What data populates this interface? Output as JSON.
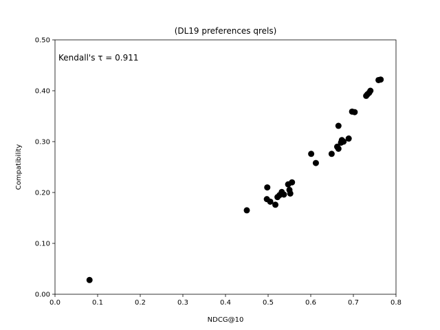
{
  "chart_data": {
    "type": "scatter",
    "title": "(DL19 preferences qrels)",
    "xlabel": "NDCG@10",
    "ylabel": "Compatibility",
    "xlim": [
      0.0,
      0.8
    ],
    "ylim": [
      0.0,
      0.5
    ],
    "x_ticks": [
      0.0,
      0.1,
      0.2,
      0.3,
      0.4,
      0.5,
      0.6,
      0.7,
      0.8
    ],
    "x_tick_labels": [
      "0.0",
      "0.1",
      "0.2",
      "0.3",
      "0.4",
      "0.5",
      "0.6",
      "0.7",
      "0.8"
    ],
    "y_ticks": [
      0.0,
      0.1,
      0.2,
      0.3,
      0.4,
      0.5
    ],
    "y_tick_labels": [
      "0.00",
      "0.10",
      "0.20",
      "0.30",
      "0.40",
      "0.50"
    ],
    "grid": false,
    "marker_color": "#000000",
    "annotation": "Kendall's τ = 0.911",
    "points": [
      {
        "x": 0.081,
        "y": 0.028
      },
      {
        "x": 0.45,
        "y": 0.165
      },
      {
        "x": 0.498,
        "y": 0.21
      },
      {
        "x": 0.497,
        "y": 0.187
      },
      {
        "x": 0.505,
        "y": 0.182
      },
      {
        "x": 0.517,
        "y": 0.176
      },
      {
        "x": 0.522,
        "y": 0.191
      },
      {
        "x": 0.527,
        "y": 0.195
      },
      {
        "x": 0.532,
        "y": 0.201
      },
      {
        "x": 0.537,
        "y": 0.196
      },
      {
        "x": 0.547,
        "y": 0.216
      },
      {
        "x": 0.55,
        "y": 0.205
      },
      {
        "x": 0.552,
        "y": 0.198
      },
      {
        "x": 0.556,
        "y": 0.22
      },
      {
        "x": 0.601,
        "y": 0.276
      },
      {
        "x": 0.612,
        "y": 0.258
      },
      {
        "x": 0.649,
        "y": 0.276
      },
      {
        "x": 0.662,
        "y": 0.29
      },
      {
        "x": 0.665,
        "y": 0.286
      },
      {
        "x": 0.665,
        "y": 0.331
      },
      {
        "x": 0.671,
        "y": 0.298
      },
      {
        "x": 0.673,
        "y": 0.303
      },
      {
        "x": 0.677,
        "y": 0.3
      },
      {
        "x": 0.689,
        "y": 0.306
      },
      {
        "x": 0.697,
        "y": 0.359
      },
      {
        "x": 0.703,
        "y": 0.358
      },
      {
        "x": 0.73,
        "y": 0.39
      },
      {
        "x": 0.733,
        "y": 0.393
      },
      {
        "x": 0.737,
        "y": 0.396
      },
      {
        "x": 0.74,
        "y": 0.4
      },
      {
        "x": 0.759,
        "y": 0.421
      },
      {
        "x": 0.764,
        "y": 0.422
      }
    ]
  }
}
